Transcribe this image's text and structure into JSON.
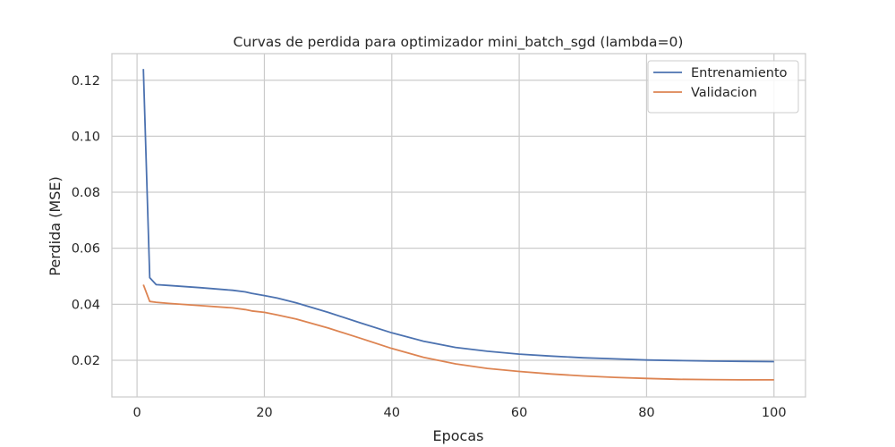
{
  "chart_data": {
    "type": "line",
    "title": "Curvas de perdida para optimizador mini_batch_sgd (lambda=0)",
    "xlabel": "Epocas",
    "ylabel": "Perdida (MSE)",
    "xlim": [
      -3.95,
      104.95
    ],
    "ylim": [
      0.0069,
      0.1295
    ],
    "xticks": [
      0,
      20,
      40,
      60,
      80,
      100
    ],
    "yticks": [
      0.02,
      0.04,
      0.06,
      0.08,
      0.1,
      0.12
    ],
    "xtick_labels": [
      "0",
      "20",
      "40",
      "60",
      "80",
      "100"
    ],
    "ytick_labels": [
      "0.02",
      "0.04",
      "0.06",
      "0.08",
      "0.10",
      "0.12"
    ],
    "grid": true,
    "legend_position": "top-right",
    "x": [
      1,
      2,
      3,
      5,
      10,
      15,
      17,
      18,
      20,
      22,
      25,
      30,
      35,
      40,
      45,
      50,
      55,
      60,
      65,
      70,
      75,
      80,
      85,
      90,
      95,
      100
    ],
    "series": [
      {
        "name": "Entrenamiento",
        "color": "#4c72b0",
        "values": [
          0.124,
          0.0495,
          0.047,
          0.0467,
          0.0459,
          0.045,
          0.0444,
          0.0439,
          0.0431,
          0.0422,
          0.0405,
          0.0371,
          0.0334,
          0.0298,
          0.0268,
          0.0246,
          0.0232,
          0.0222,
          0.0215,
          0.0209,
          0.0205,
          0.0201,
          0.0199,
          0.0197,
          0.0196,
          0.0195
        ]
      },
      {
        "name": "Validacion",
        "color": "#dd8452",
        "values": [
          0.047,
          0.041,
          0.0407,
          0.0403,
          0.0395,
          0.0387,
          0.0381,
          0.0376,
          0.0371,
          0.0362,
          0.0347,
          0.0315,
          0.0279,
          0.0242,
          0.021,
          0.0187,
          0.0171,
          0.016,
          0.0151,
          0.0144,
          0.0139,
          0.0135,
          0.0132,
          0.0131,
          0.013,
          0.013
        ]
      }
    ]
  }
}
